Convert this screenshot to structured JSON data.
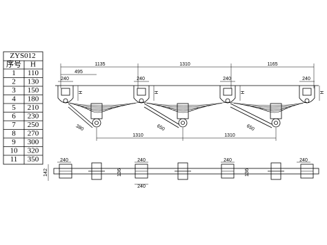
{
  "table": {
    "title": "ZYS012",
    "header": [
      "序号",
      "H"
    ],
    "rows": [
      [
        1,
        110
      ],
      [
        2,
        130
      ],
      [
        3,
        150
      ],
      [
        4,
        180
      ],
      [
        5,
        210
      ],
      [
        6,
        230
      ],
      [
        7,
        250
      ],
      [
        8,
        270
      ],
      [
        9,
        300
      ],
      [
        10,
        320
      ],
      [
        11,
        350
      ]
    ]
  },
  "side_view": {
    "top_dimensions": [
      "1135",
      "1310",
      "1165"
    ],
    "offset": "495",
    "hanger_widths": [
      "240",
      "240",
      "240",
      "240"
    ],
    "heights": [
      "H",
      "H",
      "H",
      "H"
    ],
    "arm_lengths": [
      "380",
      "650",
      "650"
    ],
    "axle_spacings": [
      "1310",
      "1310"
    ]
  },
  "plan_view": {
    "track": "142",
    "widths": [
      "240",
      "240",
      "240",
      "240",
      "240"
    ],
    "axle_widths": [
      "136",
      "136"
    ]
  }
}
